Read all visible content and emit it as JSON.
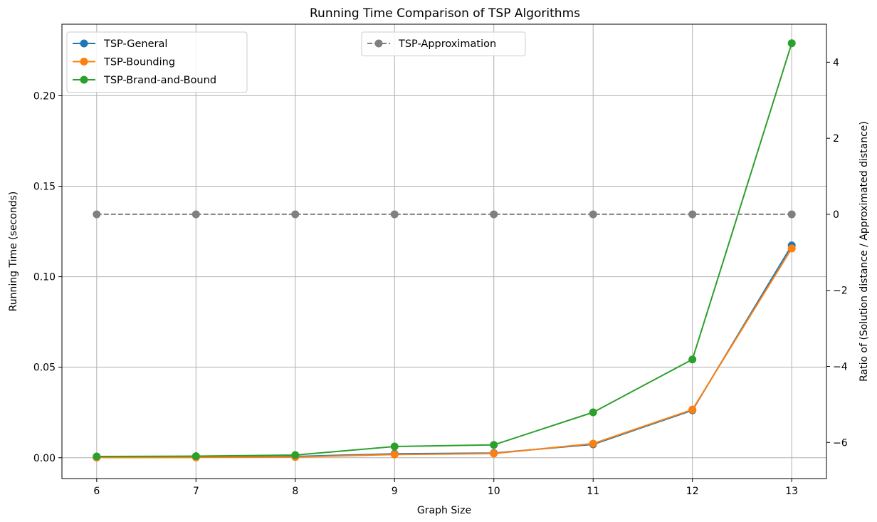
{
  "chart_data": {
    "type": "line",
    "title": "Running Time Comparison of TSP Algorithms",
    "xlabel": "Graph Size",
    "ylabel": "Running Time (seconds)",
    "y2label": "Ratio of (Solution distance / Approximated distance)",
    "x": [
      6,
      7,
      8,
      9,
      10,
      11,
      12,
      13
    ],
    "xlim": [
      5.65,
      13.35
    ],
    "ylim": [
      -0.0115,
      0.2395
    ],
    "y2lim": [
      -6.95,
      5.0
    ],
    "xticks": [
      "6",
      "7",
      "8",
      "9",
      "10",
      "11",
      "12",
      "13"
    ],
    "yticks": [
      "0.00",
      "0.05",
      "0.10",
      "0.15",
      "0.20"
    ],
    "y2ticks": [
      "−6",
      "−4",
      "−2",
      "0",
      "2",
      "4"
    ],
    "grid": true,
    "series": [
      {
        "name": "TSP-General",
        "axis": "left",
        "color": "#1f77b4",
        "linestyle": "solid",
        "values": [
          0.0002,
          0.0003,
          0.0007,
          0.0022,
          0.0026,
          0.0074,
          0.0262,
          0.1173
        ]
      },
      {
        "name": "TSP-Bounding",
        "axis": "left",
        "color": "#ff7f0e",
        "linestyle": "solid",
        "values": [
          0.0001,
          0.0002,
          0.0004,
          0.0018,
          0.0023,
          0.0078,
          0.0266,
          0.1156
        ]
      },
      {
        "name": "TSP-Brand-and-Bound",
        "axis": "left",
        "color": "#2ca02c",
        "linestyle": "solid",
        "values": [
          0.0007,
          0.0009,
          0.0015,
          0.0062,
          0.0071,
          0.0251,
          0.0543,
          0.229
        ]
      },
      {
        "name": "TSP-Approximation",
        "axis": "right",
        "color": "#808080",
        "linestyle": "dashed",
        "values": [
          0,
          0,
          0,
          0,
          0,
          0,
          0,
          0
        ]
      }
    ],
    "legends": [
      {
        "placement": "upper-left",
        "entries": [
          "TSP-General",
          "TSP-Bounding",
          "TSP-Brand-and-Bound"
        ]
      },
      {
        "placement": "upper-center",
        "entries": [
          "TSP-Approximation"
        ]
      }
    ]
  }
}
